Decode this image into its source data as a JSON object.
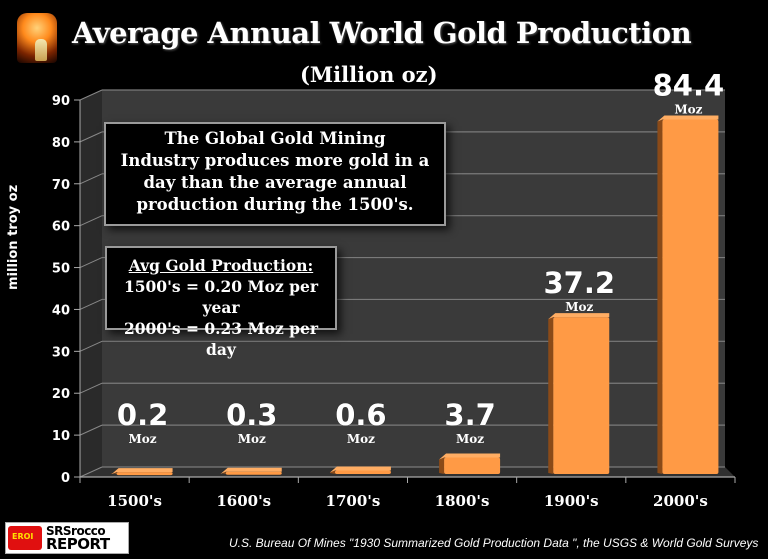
{
  "header": {
    "title": "Average Annual World Gold Production",
    "subtitle": "(Million oz)",
    "logo_icon": "gold-pour-icon"
  },
  "annotations": {
    "box1_lines": [
      "The Global Gold Mining",
      "Industry produces more gold in a",
      "day than the average annual",
      "production during the 1500's."
    ],
    "box2_heading": "Avg Gold Production:",
    "box2_lines": [
      "1500's = 0.20 Moz per year",
      "2000's = 0.23 Moz per day"
    ]
  },
  "footer": {
    "logo_badge": "EROI",
    "logo_line1": "SRSrocco",
    "logo_line2": "REPORT",
    "source": "U.S. Bureau Of Mines \"1930 Summarized Gold Production Data \", the USGS & World Gold Surveys"
  },
  "colors": {
    "bar": "#ff9a45",
    "bar_side": "#8a4a18",
    "plot_wall": "#3a3a3a",
    "background": "#000000",
    "text": "#ffffff"
  },
  "chart_data": {
    "type": "bar",
    "title": "Average Annual World Gold Production",
    "subtitle": "(Million oz)",
    "xlabel": "",
    "ylabel": "million troy oz",
    "categories": [
      "1500's",
      "1600's",
      "1700's",
      "1800's",
      "1900's",
      "2000's"
    ],
    "values": [
      0.2,
      0.3,
      0.6,
      3.7,
      37.2,
      84.4
    ],
    "data_labels": [
      "0.2",
      "0.3",
      "0.6",
      "3.7",
      "37.2",
      "84.4"
    ],
    "data_label_unit": "Moz",
    "ylim": [
      0,
      90
    ],
    "yticks": [
      0,
      10,
      20,
      30,
      40,
      50,
      60,
      70,
      80,
      90
    ],
    "grid": true,
    "legend": "none",
    "style": "3d-column"
  }
}
